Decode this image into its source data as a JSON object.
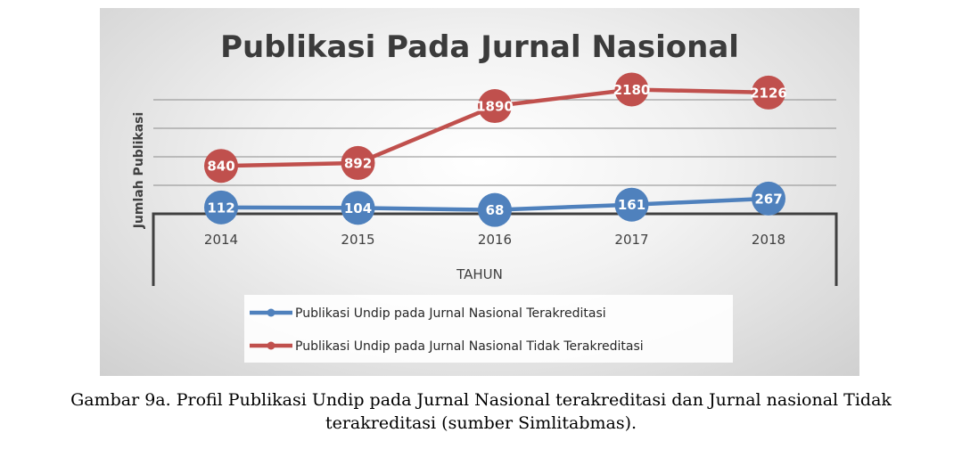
{
  "chart_data": {
    "type": "line",
    "title": "Publikasi Pada Jurnal Nasional",
    "xlabel": "TAHUN",
    "ylabel": "Jumlah Publikasi",
    "categories": [
      "2014",
      "2015",
      "2016",
      "2017",
      "2018"
    ],
    "series": [
      {
        "name": "Publikasi Undip pada Jurnal Nasional Terakreditasi",
        "values": [
          112,
          104,
          68,
          161,
          267
        ],
        "color": "#4f81bd"
      },
      {
        "name": "Publikasi Undip pada Jurnal Nasional Tidak Terakreditasi",
        "values": [
          840,
          892,
          1890,
          2180,
          2126
        ],
        "color": "#c0504d"
      }
    ],
    "ylim": [
      0,
      2500
    ],
    "grid": true,
    "legend_position": "bottom",
    "data_labels": true
  },
  "caption": {
    "line1": "Gambar 9a. Profil Publikasi Undip pada Jurnal Nasional terakreditasi dan Jurnal nasional Tidak",
    "line2": "terakreditasi (sumber Simlitabmas)."
  }
}
